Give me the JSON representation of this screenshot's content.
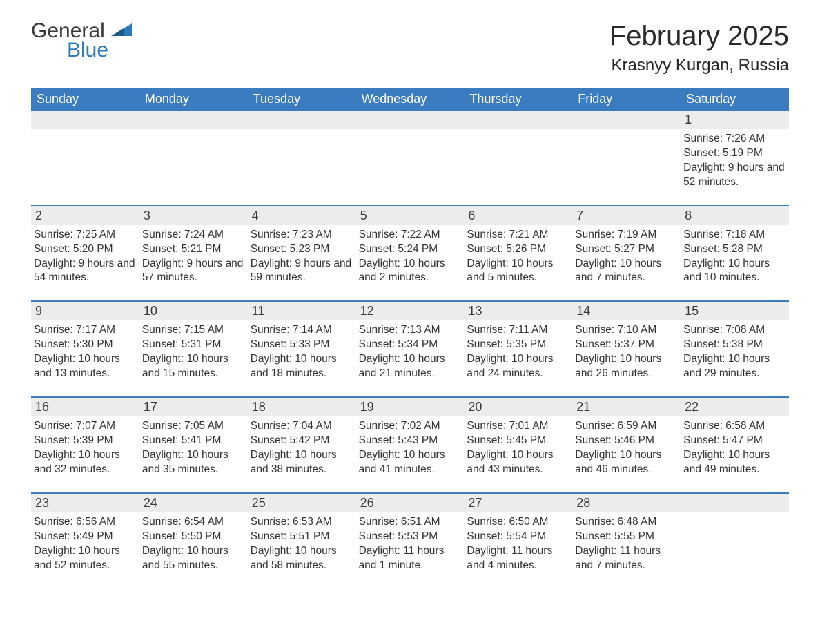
{
  "logo": {
    "general": "General",
    "blue": "Blue"
  },
  "title": "February 2025",
  "location": "Krasnyy Kurgan, Russia",
  "colors": {
    "header_bg": "#3b7bbf",
    "header_text": "#ffffff",
    "daynum_bg": "#ececec",
    "row_divider": "#3b7bbf",
    "body_text": "#333333",
    "logo_blue": "#2a7ab9",
    "logo_dark": "#3a3a3a"
  },
  "weekdays": [
    "Sunday",
    "Monday",
    "Tuesday",
    "Wednesday",
    "Thursday",
    "Friday",
    "Saturday"
  ],
  "weeks": [
    [
      null,
      null,
      null,
      null,
      null,
      null,
      {
        "n": "1",
        "sr": "Sunrise: 7:26 AM",
        "ss": "Sunset: 5:19 PM",
        "dl": "Daylight: 9 hours and 52 minutes."
      }
    ],
    [
      {
        "n": "2",
        "sr": "Sunrise: 7:25 AM",
        "ss": "Sunset: 5:20 PM",
        "dl": "Daylight: 9 hours and 54 minutes."
      },
      {
        "n": "3",
        "sr": "Sunrise: 7:24 AM",
        "ss": "Sunset: 5:21 PM",
        "dl": "Daylight: 9 hours and 57 minutes."
      },
      {
        "n": "4",
        "sr": "Sunrise: 7:23 AM",
        "ss": "Sunset: 5:23 PM",
        "dl": "Daylight: 9 hours and 59 minutes."
      },
      {
        "n": "5",
        "sr": "Sunrise: 7:22 AM",
        "ss": "Sunset: 5:24 PM",
        "dl": "Daylight: 10 hours and 2 minutes."
      },
      {
        "n": "6",
        "sr": "Sunrise: 7:21 AM",
        "ss": "Sunset: 5:26 PM",
        "dl": "Daylight: 10 hours and 5 minutes."
      },
      {
        "n": "7",
        "sr": "Sunrise: 7:19 AM",
        "ss": "Sunset: 5:27 PM",
        "dl": "Daylight: 10 hours and 7 minutes."
      },
      {
        "n": "8",
        "sr": "Sunrise: 7:18 AM",
        "ss": "Sunset: 5:28 PM",
        "dl": "Daylight: 10 hours and 10 minutes."
      }
    ],
    [
      {
        "n": "9",
        "sr": "Sunrise: 7:17 AM",
        "ss": "Sunset: 5:30 PM",
        "dl": "Daylight: 10 hours and 13 minutes."
      },
      {
        "n": "10",
        "sr": "Sunrise: 7:15 AM",
        "ss": "Sunset: 5:31 PM",
        "dl": "Daylight: 10 hours and 15 minutes."
      },
      {
        "n": "11",
        "sr": "Sunrise: 7:14 AM",
        "ss": "Sunset: 5:33 PM",
        "dl": "Daylight: 10 hours and 18 minutes."
      },
      {
        "n": "12",
        "sr": "Sunrise: 7:13 AM",
        "ss": "Sunset: 5:34 PM",
        "dl": "Daylight: 10 hours and 21 minutes."
      },
      {
        "n": "13",
        "sr": "Sunrise: 7:11 AM",
        "ss": "Sunset: 5:35 PM",
        "dl": "Daylight: 10 hours and 24 minutes."
      },
      {
        "n": "14",
        "sr": "Sunrise: 7:10 AM",
        "ss": "Sunset: 5:37 PM",
        "dl": "Daylight: 10 hours and 26 minutes."
      },
      {
        "n": "15",
        "sr": "Sunrise: 7:08 AM",
        "ss": "Sunset: 5:38 PM",
        "dl": "Daylight: 10 hours and 29 minutes."
      }
    ],
    [
      {
        "n": "16",
        "sr": "Sunrise: 7:07 AM",
        "ss": "Sunset: 5:39 PM",
        "dl": "Daylight: 10 hours and 32 minutes."
      },
      {
        "n": "17",
        "sr": "Sunrise: 7:05 AM",
        "ss": "Sunset: 5:41 PM",
        "dl": "Daylight: 10 hours and 35 minutes."
      },
      {
        "n": "18",
        "sr": "Sunrise: 7:04 AM",
        "ss": "Sunset: 5:42 PM",
        "dl": "Daylight: 10 hours and 38 minutes."
      },
      {
        "n": "19",
        "sr": "Sunrise: 7:02 AM",
        "ss": "Sunset: 5:43 PM",
        "dl": "Daylight: 10 hours and 41 minutes."
      },
      {
        "n": "20",
        "sr": "Sunrise: 7:01 AM",
        "ss": "Sunset: 5:45 PM",
        "dl": "Daylight: 10 hours and 43 minutes."
      },
      {
        "n": "21",
        "sr": "Sunrise: 6:59 AM",
        "ss": "Sunset: 5:46 PM",
        "dl": "Daylight: 10 hours and 46 minutes."
      },
      {
        "n": "22",
        "sr": "Sunrise: 6:58 AM",
        "ss": "Sunset: 5:47 PM",
        "dl": "Daylight: 10 hours and 49 minutes."
      }
    ],
    [
      {
        "n": "23",
        "sr": "Sunrise: 6:56 AM",
        "ss": "Sunset: 5:49 PM",
        "dl": "Daylight: 10 hours and 52 minutes."
      },
      {
        "n": "24",
        "sr": "Sunrise: 6:54 AM",
        "ss": "Sunset: 5:50 PM",
        "dl": "Daylight: 10 hours and 55 minutes."
      },
      {
        "n": "25",
        "sr": "Sunrise: 6:53 AM",
        "ss": "Sunset: 5:51 PM",
        "dl": "Daylight: 10 hours and 58 minutes."
      },
      {
        "n": "26",
        "sr": "Sunrise: 6:51 AM",
        "ss": "Sunset: 5:53 PM",
        "dl": "Daylight: 11 hours and 1 minute."
      },
      {
        "n": "27",
        "sr": "Sunrise: 6:50 AM",
        "ss": "Sunset: 5:54 PM",
        "dl": "Daylight: 11 hours and 4 minutes."
      },
      {
        "n": "28",
        "sr": "Sunrise: 6:48 AM",
        "ss": "Sunset: 5:55 PM",
        "dl": "Daylight: 11 hours and 7 minutes."
      },
      null
    ]
  ]
}
